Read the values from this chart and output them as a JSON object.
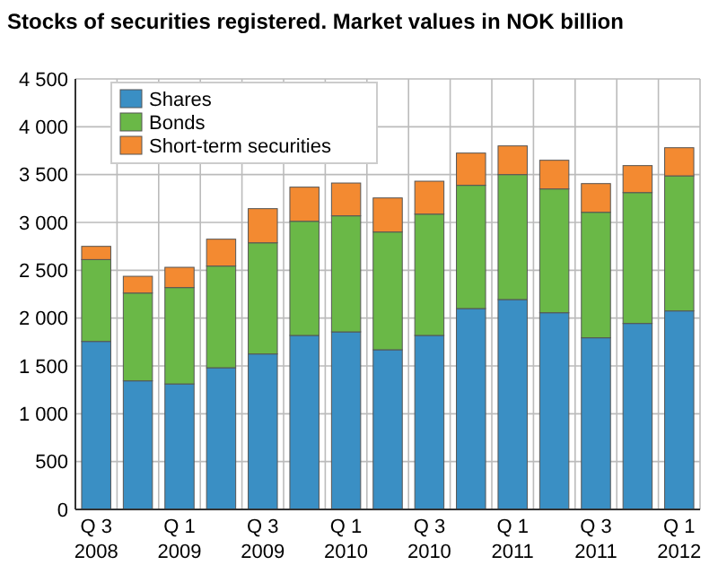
{
  "chart_data": {
    "type": "bar",
    "title": "Stocks of securities registered. Market values in NOK billion",
    "stacked": true,
    "grid": true,
    "legend": "top left",
    "categories": [
      "Q 3 2008",
      null,
      "Q 1 2009",
      null,
      "Q 3 2009",
      null,
      "Q 1 2010",
      null,
      "Q 3 2010",
      null,
      "Q 1 2011",
      null,
      "Q 3 2011",
      null,
      "Q 1 2012"
    ],
    "ylim": [
      0,
      4500
    ],
    "yticks": [
      0,
      {
        "value": 500,
        "label": "500"
      },
      {
        "value": 1000,
        "label": "1 000"
      },
      {
        "value": 1500,
        "label": "1 500"
      },
      {
        "value": 2000,
        "label": "2 000"
      },
      {
        "value": 2500,
        "label": "2 500"
      },
      {
        "value": 3000,
        "label": "3 000"
      },
      {
        "value": 3500,
        "label": "3 500"
      },
      {
        "value": 4000,
        "label": "4 000"
      },
      {
        "value": 4500,
        "label": "4 500"
      }
    ],
    "series": [
      {
        "name": "Shares",
        "color": "#3a8fc4",
        "values": [
          1756,
          1344,
          1312,
          1481,
          1625,
          1819,
          1856,
          1669,
          1819,
          2100,
          2194,
          2056,
          1794,
          1944,
          2075
        ]
      },
      {
        "name": "Bonds",
        "color": "#6ab847",
        "values": [
          856,
          918,
          1007,
          1063,
          1162,
          1193,
          1213,
          1231,
          1268,
          1288,
          1306,
          1294,
          1312,
          1368,
          1412
        ]
      },
      {
        "name": "Short-term securities",
        "color": "#f38a31",
        "values": [
          138,
          175,
          212,
          281,
          357,
          357,
          343,
          356,
          344,
          337,
          300,
          300,
          300,
          282,
          294
        ]
      }
    ]
  }
}
